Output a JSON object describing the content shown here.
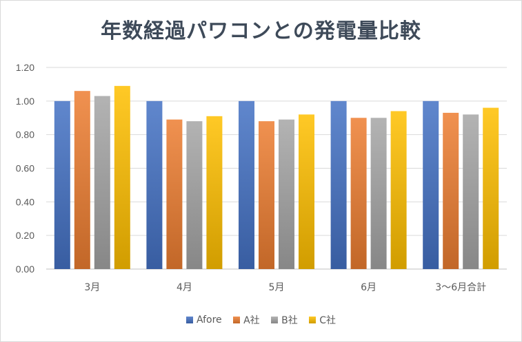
{
  "chart_data": {
    "type": "bar",
    "title": "年数経過パワコンとの発電量比較",
    "categories": [
      "3月",
      "4月",
      "5月",
      "6月",
      "3～6月合計"
    ],
    "series": [
      {
        "name": "Afore",
        "color": "#4472c4",
        "values": [
          1.0,
          1.0,
          1.0,
          1.0,
          1.0
        ]
      },
      {
        "name": "A社",
        "color": "#ed7d31",
        "values": [
          1.06,
          0.89,
          0.88,
          0.9,
          0.93
        ]
      },
      {
        "name": "B社",
        "color": "#a5a5a5",
        "values": [
          1.03,
          0.88,
          0.89,
          0.9,
          0.92
        ]
      },
      {
        "name": "C社",
        "color": "#ffc000",
        "values": [
          1.09,
          0.91,
          0.92,
          0.94,
          0.96
        ]
      }
    ],
    "ylim": [
      0,
      1.2
    ],
    "yticks": [
      "0.00",
      "0.20",
      "0.40",
      "0.60",
      "0.80",
      "1.00",
      "1.20"
    ],
    "grid": true,
    "legend_position": "bottom"
  }
}
